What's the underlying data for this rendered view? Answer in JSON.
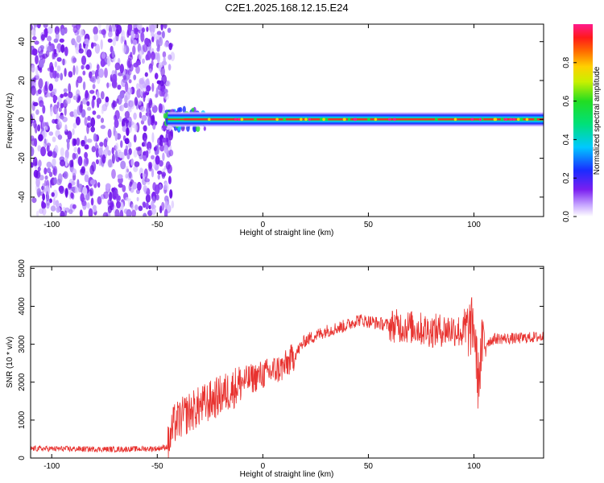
{
  "title": "C2E1.2025.168.12.15.E24",
  "colors": {
    "snr_line": "#e8322f",
    "noise_purple": "#7a1ff0",
    "band_core": "#e8322f",
    "band_mid": "#22dd33",
    "band_outer": "#1a66ff"
  },
  "chart_data": [
    {
      "type": "heatmap",
      "xlabel": "Height of straight line (km)",
      "ylabel": "Frequency (Hz)",
      "xlim": [
        -110,
        133
      ],
      "ylim": [
        -50,
        49
      ],
      "x_ticks": [
        -100,
        -50,
        0,
        50,
        100
      ],
      "y_ticks": [
        -40,
        -20,
        0,
        20,
        40
      ],
      "noise_region_x": [
        -110,
        -45
      ],
      "band_center_hz": 0,
      "band_start_x": -45,
      "colorbar": {
        "label": "Normalized spectral amplitude",
        "range": [
          0,
          1
        ],
        "ticks": [
          0.0,
          0.2,
          0.4,
          0.6,
          0.8
        ]
      },
      "grid": false
    },
    {
      "type": "line",
      "xlabel": "Height of straight line (km)",
      "ylabel": "SNR (10 * v/v)",
      "xlim": [
        -110,
        133
      ],
      "ylim": [
        0,
        5050
      ],
      "x_ticks": [
        -100,
        -50,
        0,
        50,
        100
      ],
      "y_ticks": [
        0,
        1000,
        2000,
        3000,
        4000,
        5000
      ],
      "envelope_x": [
        -110,
        -90,
        -70,
        -50,
        -45,
        -42,
        -35,
        -25,
        -15,
        -10,
        0,
        10,
        15,
        20,
        30,
        40,
        45,
        50,
        60,
        70,
        80,
        90,
        95,
        100,
        102,
        104,
        110,
        120,
        133
      ],
      "envelope_y": [
        250,
        240,
        230,
        250,
        300,
        900,
        1200,
        1500,
        1800,
        2000,
        2200,
        2400,
        2700,
        3100,
        3350,
        3500,
        3650,
        3600,
        3500,
        3450,
        3350,
        3400,
        3300,
        3500,
        2000,
        3000,
        3150,
        3150,
        3200
      ],
      "grid": false
    }
  ]
}
